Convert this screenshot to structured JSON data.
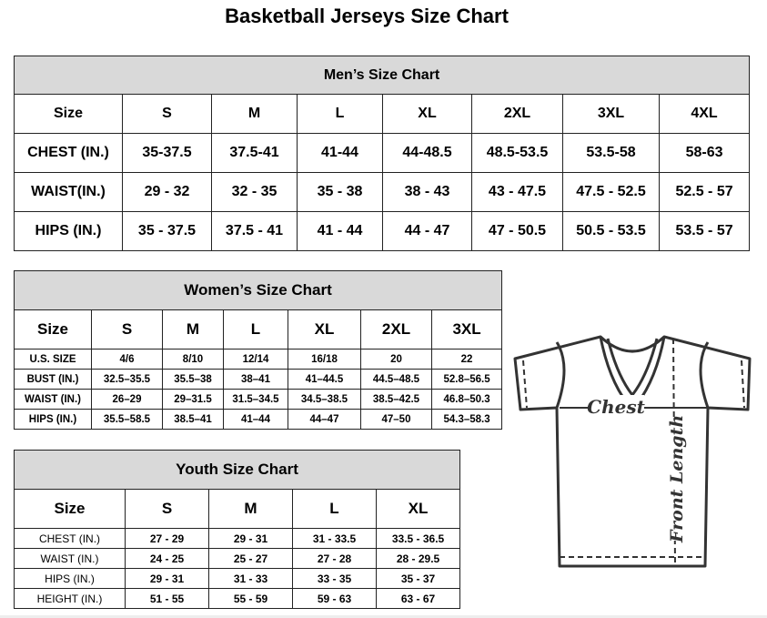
{
  "title": "Basketball Jerseys Size Chart",
  "men": {
    "heading": "Men’s Size Chart",
    "columns": [
      "Size",
      "S",
      "M",
      "L",
      "XL",
      "2XL",
      "3XL",
      "4XL"
    ],
    "rows": [
      [
        "CHEST (IN.)",
        "35-37.5",
        "37.5-41",
        "41-44",
        "44-48.5",
        "48.5-53.5",
        "53.5-58",
        "58-63"
      ],
      [
        "WAIST(IN.)",
        "29 - 32",
        "32 - 35",
        "35 - 38",
        "38 - 43",
        "43 - 47.5",
        "47.5 - 52.5",
        "52.5 - 57"
      ],
      [
        "HIPS (IN.)",
        "35 - 37.5",
        "37.5 - 41",
        "41 - 44",
        "44 - 47",
        "47 - 50.5",
        "50.5 - 53.5",
        "53.5 - 57"
      ]
    ]
  },
  "women": {
    "heading": "Women’s Size Chart",
    "columns": [
      "Size",
      "S",
      "M",
      "L",
      "XL",
      "2XL",
      "3XL"
    ],
    "rows": [
      [
        "U.S. SIZE",
        "4/6",
        "8/10",
        "12/14",
        "16/18",
        "20",
        "22"
      ],
      [
        "BUST (IN.)",
        "32.5–35.5",
        "35.5–38",
        "38–41",
        "41–44.5",
        "44.5–48.5",
        "52.8–56.5"
      ],
      [
        "WAIST (IN.)",
        "26–29",
        "29–31.5",
        "31.5–34.5",
        "34.5–38.5",
        "38.5–42.5",
        "46.8–50.3"
      ],
      [
        "HIPS (IN.)",
        "35.5–58.5",
        "38.5–41",
        "41–44",
        "44–47",
        "47–50",
        "54.3–58.3"
      ]
    ]
  },
  "youth": {
    "heading": "Youth Size Chart",
    "columns": [
      "Size",
      "S",
      "M",
      "L",
      "XL"
    ],
    "rows": [
      [
        "CHEST (IN.)",
        "27 - 29",
        "29 - 31",
        "31 - 33.5",
        "33.5 - 36.5"
      ],
      [
        "WAIST (IN.)",
        "24 - 25",
        "25 - 27",
        "27 - 28",
        "28 - 29.5"
      ],
      [
        "HIPS (IN.)",
        "29 - 31",
        "31 - 33",
        "33 - 35",
        "35 - 37"
      ],
      [
        "HEIGHT (IN.)",
        "51 - 55",
        "55 - 59",
        "59 - 63",
        "63 - 67"
      ]
    ]
  },
  "diagram": {
    "chest_label": "Chest",
    "length_label": "Front Length",
    "icon": "t-shirt-icon"
  }
}
